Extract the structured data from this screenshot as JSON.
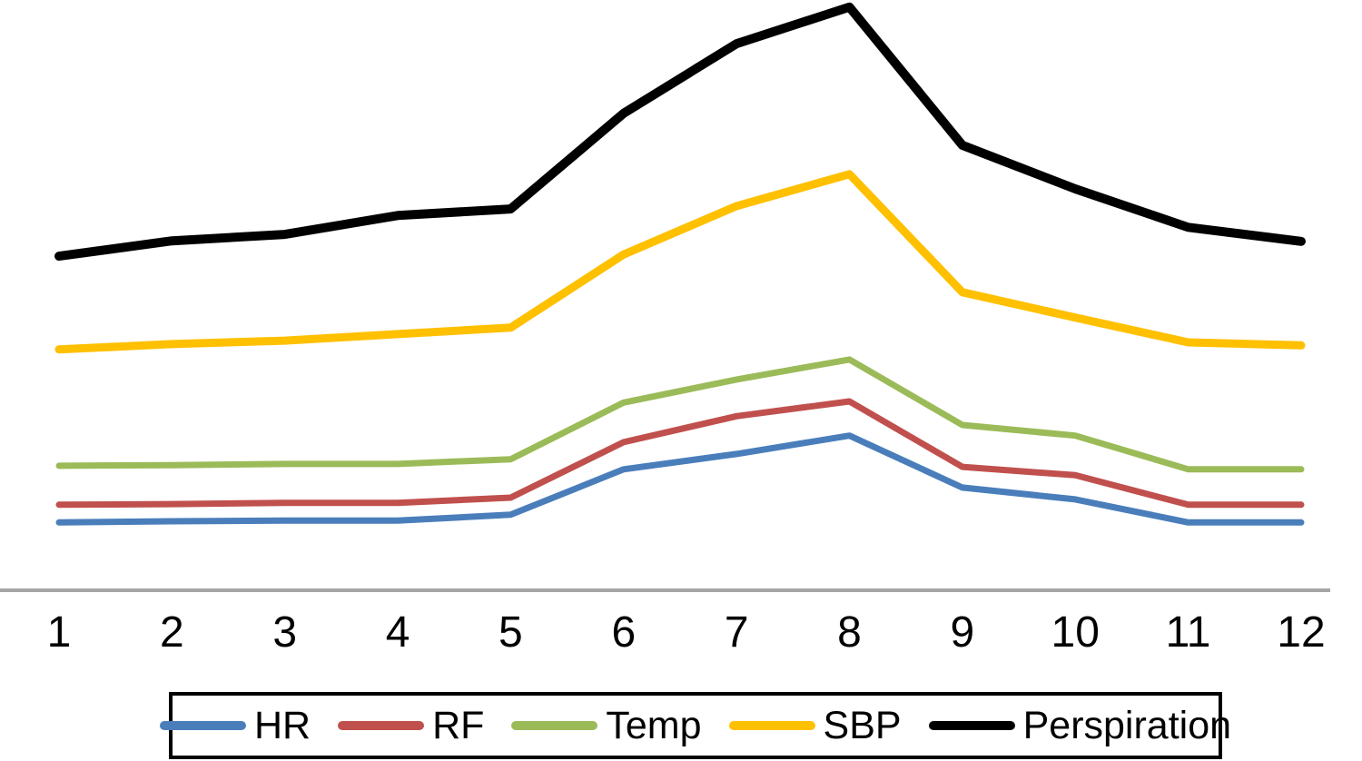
{
  "chart_data": {
    "type": "line",
    "title": "",
    "xlabel": "",
    "ylabel": "",
    "categories": [
      "1",
      "2",
      "3",
      "4",
      "5",
      "6",
      "7",
      "8",
      "9",
      "10",
      "11",
      "12"
    ],
    "x_axis_visible": true,
    "y_axis_visible": false,
    "grid": false,
    "legend_position": "bottom",
    "axis_color": "#A6A6A6",
    "tick_label_color": "#000000",
    "ylim": [
      0,
      100
    ],
    "series": [
      {
        "name": "HR",
        "color": "#4A7EBB",
        "values": [
          11.5,
          11.7,
          11.8,
          11.8,
          12.8,
          20.5,
          23.1,
          26.2,
          17.4,
          15.4,
          11.5,
          11.5
        ]
      },
      {
        "name": "RF",
        "color": "#C0504D",
        "values": [
          14.5,
          14.6,
          14.8,
          14.8,
          15.7,
          25.1,
          29.5,
          32.0,
          20.9,
          19.5,
          14.5,
          14.5
        ]
      },
      {
        "name": "Temp",
        "color": "#9BBB59",
        "values": [
          21.1,
          21.2,
          21.4,
          21.4,
          22.2,
          31.8,
          35.7,
          39.1,
          28.0,
          26.2,
          20.5,
          20.5
        ]
      },
      {
        "name": "SBP",
        "color": "#FFC000",
        "values": [
          40.8,
          41.7,
          42.3,
          43.4,
          44.5,
          56.9,
          65.1,
          70.5,
          50.5,
          46.2,
          42.0,
          41.5
        ]
      },
      {
        "name": "Perspiration",
        "color": "#000000",
        "values": [
          56.6,
          59.2,
          60.3,
          63.5,
          64.6,
          80.8,
          92.6,
          98.8,
          75.4,
          68.0,
          61.5,
          59.1
        ]
      }
    ]
  }
}
